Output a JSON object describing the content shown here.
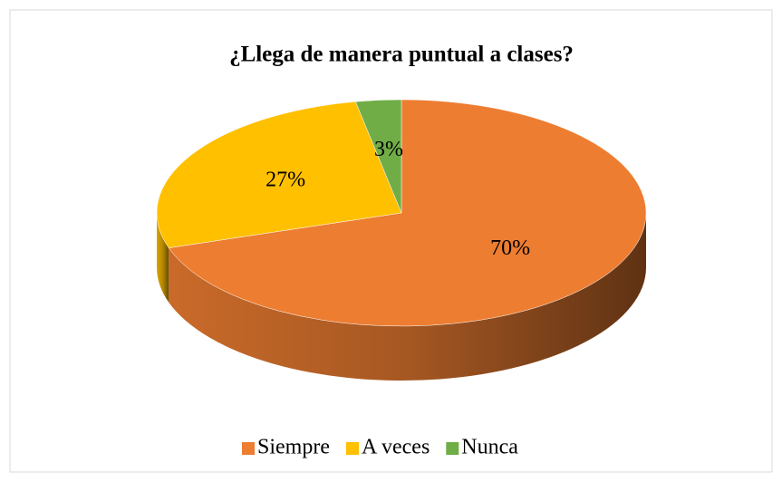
{
  "chart_data": {
    "type": "pie",
    "title": "¿Llega de manera puntual a clases?",
    "categories": [
      "Siempre",
      "A veces",
      "Nunca"
    ],
    "values": [
      70,
      27,
      3
    ],
    "value_labels": [
      "70%",
      "27%",
      "3%"
    ],
    "colors": [
      "#ED7D31",
      "#FFC000",
      "#70AD47"
    ],
    "legend": "bottom"
  }
}
